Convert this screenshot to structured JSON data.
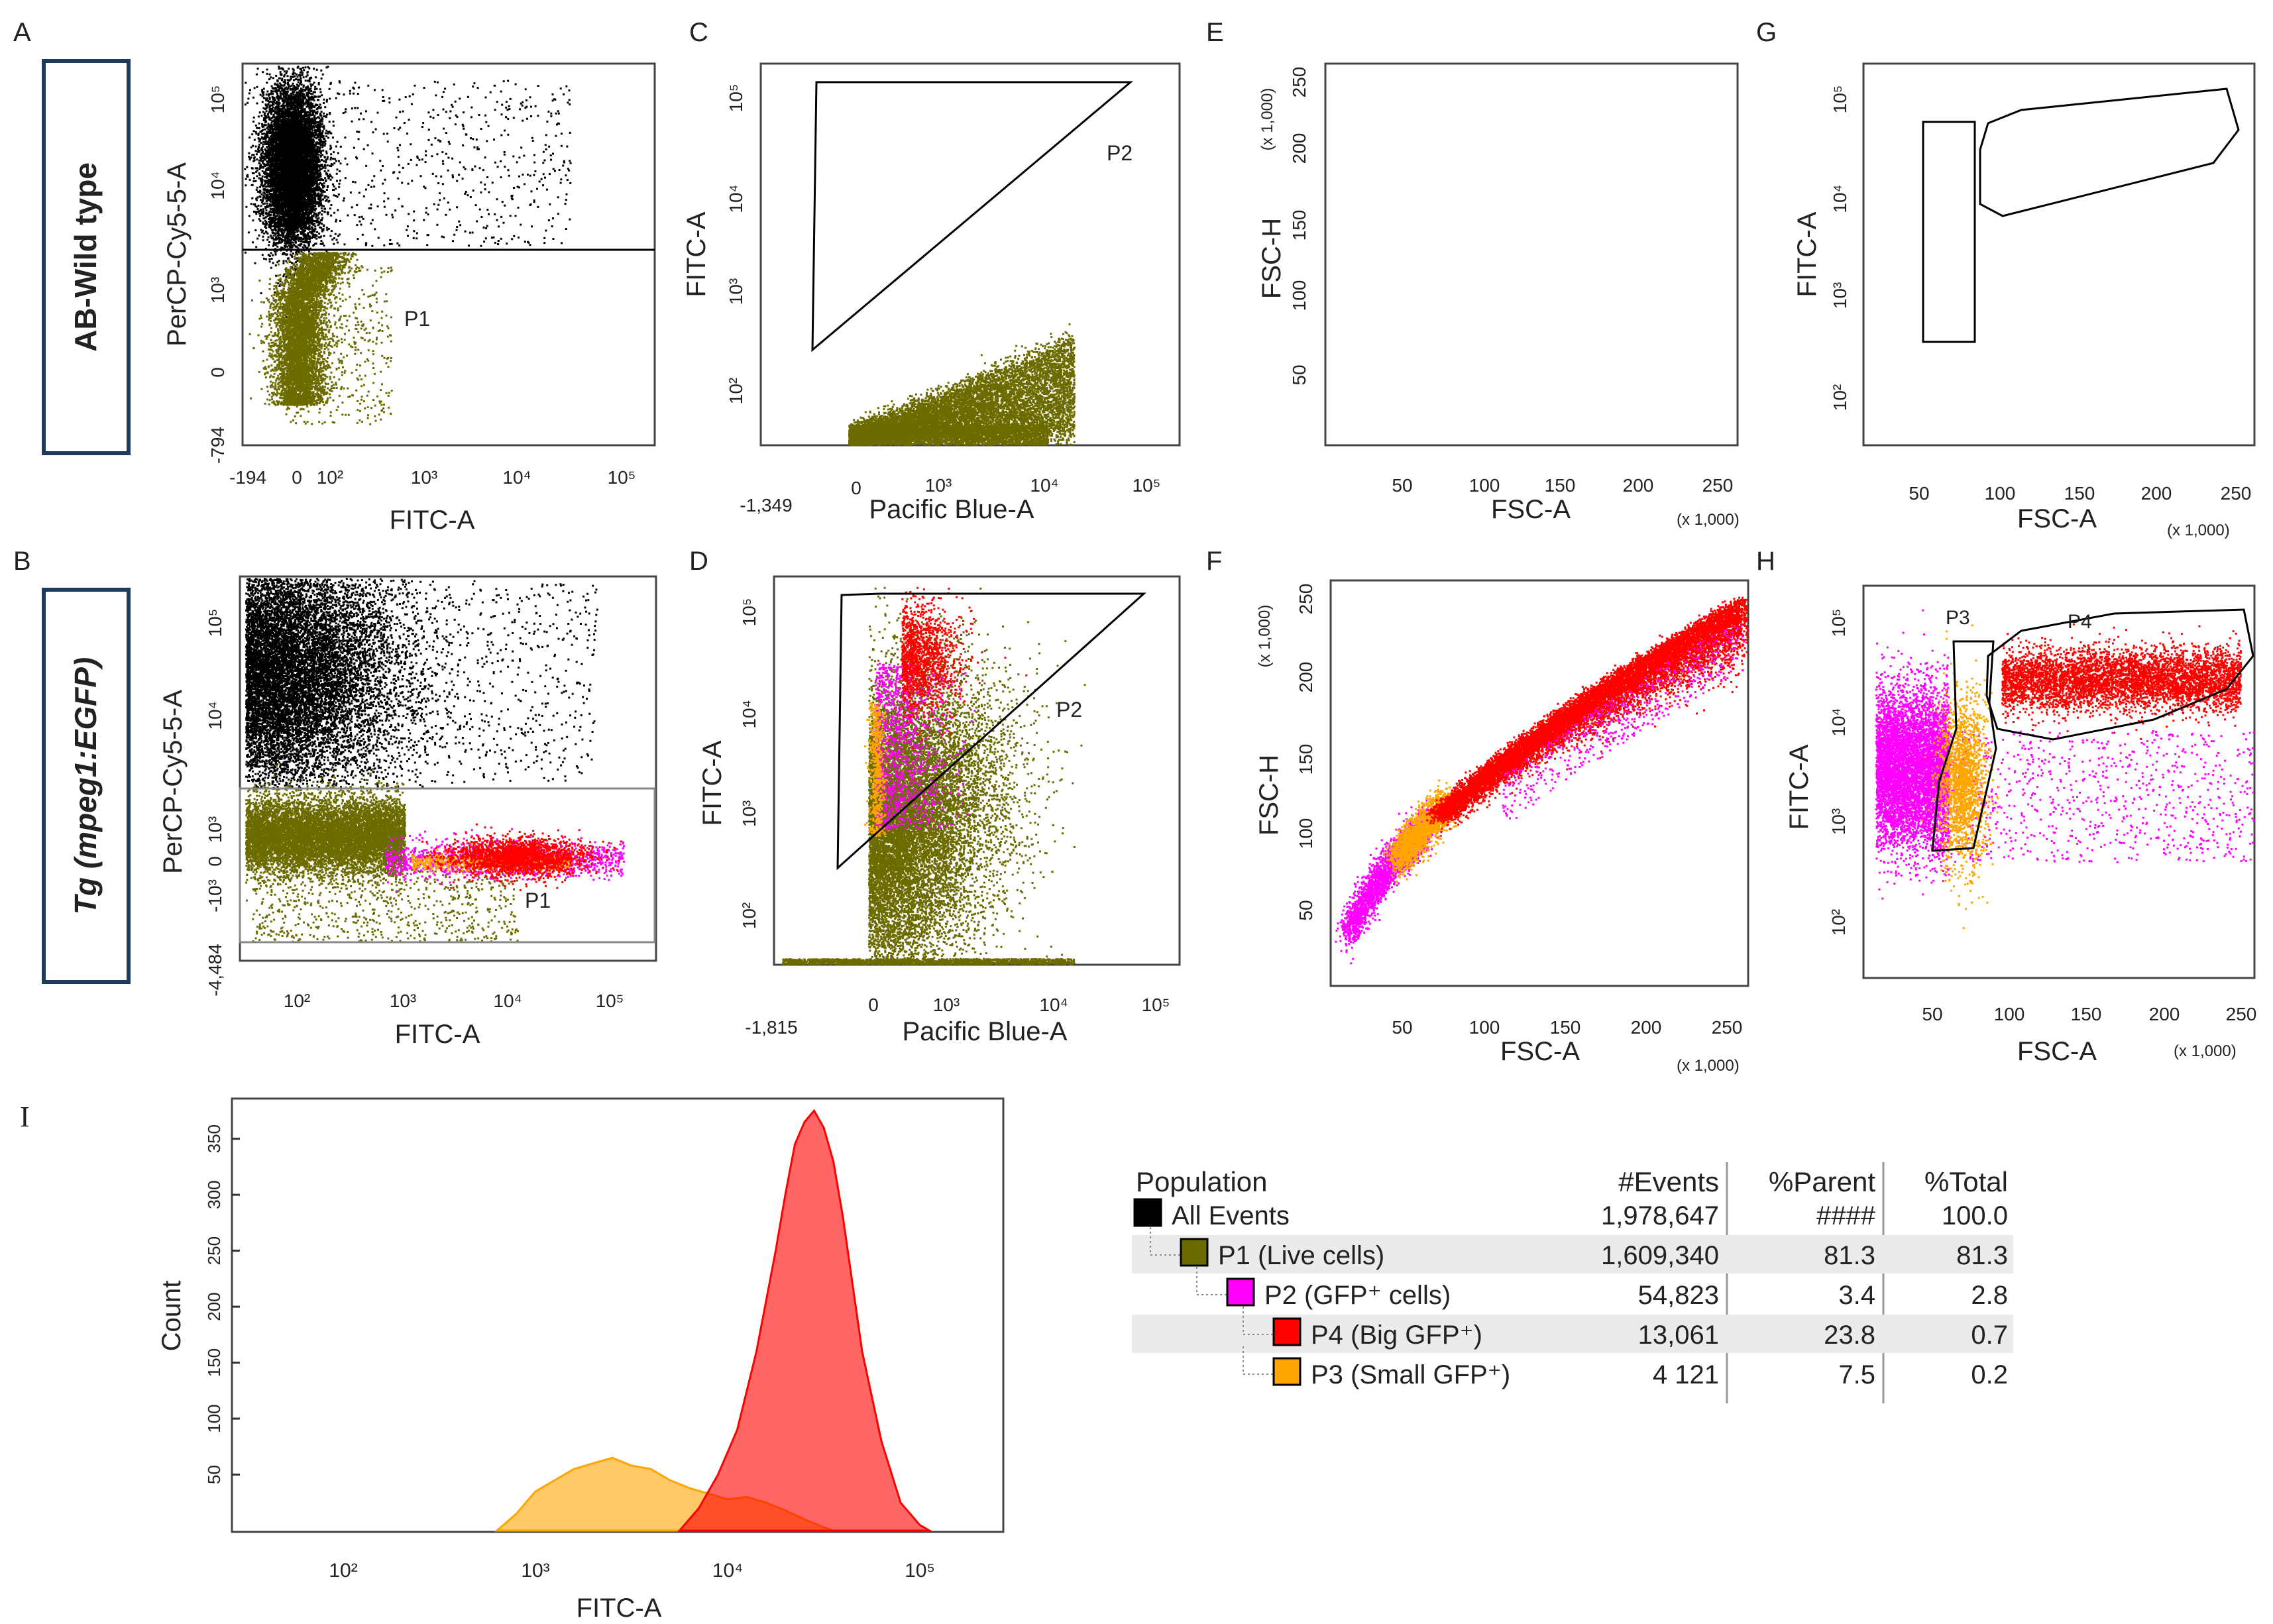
{
  "panel_letters": {
    "A": "A",
    "B": "B",
    "C": "C",
    "D": "D",
    "E": "E",
    "F": "F",
    "G": "G",
    "H": "H",
    "I": "I"
  },
  "row_labels": {
    "top": "AB-Wild type",
    "bottom": "Tg (mpeg1:EGFP)"
  },
  "colors": {
    "all_events": "#000000",
    "p1": "#6b6b00",
    "p2": "#ff00ff",
    "p4": "#ff0000",
    "p3": "#ffa500",
    "frame": "#1f3a5f"
  },
  "chart_data": [
    {
      "id": "A",
      "type": "scatter",
      "xlabel": "FITC-A",
      "ylabel": "PerCP-Cy5-5-A",
      "x_ticks": [
        "-194",
        "0",
        "10²",
        "10³",
        "10⁴",
        "10⁵"
      ],
      "y_ticks": [
        "-794",
        "0",
        "10³",
        "10⁴",
        "10⁵"
      ],
      "gates": [
        {
          "name": "P1",
          "shape": "horizontal-line-below"
        }
      ],
      "populations": [
        "all_events",
        "p1"
      ]
    },
    {
      "id": "C",
      "type": "scatter",
      "xlabel": "Pacific Blue-A",
      "ylabel": "FITC-A",
      "x_ticks": [
        "-1,349",
        "0",
        "10³",
        "10⁴",
        "10⁵"
      ],
      "y_ticks": [
        "10²",
        "10³",
        "10⁴",
        "10⁵"
      ],
      "gates": [
        {
          "name": "P2",
          "shape": "triangle"
        }
      ],
      "populations": [
        "p1"
      ]
    },
    {
      "id": "E",
      "type": "scatter",
      "xlabel": "FSC-A",
      "ylabel": "FSC-H",
      "x_ticks": [
        "50",
        "100",
        "150",
        "200",
        "250"
      ],
      "y_ticks": [
        "50",
        "100",
        "150",
        "200",
        "250"
      ],
      "x_scale_note": "(x 1,000)",
      "y_scale_note": "(x 1,000)",
      "gates": [],
      "populations": []
    },
    {
      "id": "G",
      "type": "scatter",
      "xlabel": "FSC-A",
      "ylabel": "FITC-A",
      "x_ticks": [
        "50",
        "100",
        "150",
        "200",
        "250"
      ],
      "y_ticks": [
        "10²",
        "10³",
        "10⁴",
        "10⁵"
      ],
      "x_scale_note": "(x 1,000)",
      "gates": [
        {
          "name": "",
          "shape": "rectangle"
        },
        {
          "name": "",
          "shape": "polygon"
        }
      ],
      "populations": []
    },
    {
      "id": "B",
      "type": "scatter",
      "xlabel": "FITC-A",
      "ylabel": "PerCP-Cy5-5-A",
      "x_ticks": [
        "10²",
        "10³",
        "10⁴",
        "10⁵"
      ],
      "y_ticks": [
        "-4,484",
        "-10³",
        "0",
        "10³",
        "10⁴",
        "10⁵"
      ],
      "gates": [
        {
          "name": "P1",
          "shape": "band"
        }
      ],
      "populations": [
        "all_events",
        "p1",
        "p2",
        "p3",
        "p4"
      ]
    },
    {
      "id": "D",
      "type": "scatter",
      "xlabel": "Pacific Blue-A",
      "ylabel": "FITC-A",
      "x_ticks": [
        "-1,815",
        "0",
        "10³",
        "10⁴",
        "10⁵"
      ],
      "y_ticks": [
        "10²",
        "10³",
        "10⁴",
        "10⁵"
      ],
      "gates": [
        {
          "name": "P2",
          "shape": "triangle"
        }
      ],
      "populations": [
        "p1",
        "p2",
        "p3",
        "p4"
      ]
    },
    {
      "id": "F",
      "type": "scatter",
      "xlabel": "FSC-A",
      "ylabel": "FSC-H",
      "x_ticks": [
        "50",
        "100",
        "150",
        "200",
        "250"
      ],
      "y_ticks": [
        "50",
        "100",
        "150",
        "200",
        "250"
      ],
      "x_scale_note": "(x 1,000)",
      "y_scale_note": "(x 1,000)",
      "gates": [],
      "populations": [
        "p2",
        "p3",
        "p4"
      ]
    },
    {
      "id": "H",
      "type": "scatter",
      "xlabel": "FSC-A",
      "ylabel": "FITC-A",
      "x_ticks": [
        "50",
        "100",
        "150",
        "200",
        "250"
      ],
      "y_ticks": [
        "10²",
        "10³",
        "10⁴",
        "10⁵"
      ],
      "x_scale_note": "(x 1,000)",
      "gates": [
        {
          "name": "P3",
          "shape": "polygon"
        },
        {
          "name": "P4",
          "shape": "polygon"
        }
      ],
      "populations": [
        "p2",
        "p3",
        "p4"
      ]
    },
    {
      "id": "I",
      "type": "area",
      "title": "",
      "xlabel": "FITC-A",
      "ylabel": "Count",
      "x_ticks": [
        "10²",
        "10³",
        "10⁴",
        "10⁵"
      ],
      "y_ticks": [
        "50",
        "100",
        "150",
        "200",
        "250",
        "300",
        "350"
      ],
      "ylim": [
        0,
        380
      ],
      "series": [
        {
          "name": "P3",
          "color_key": "p3",
          "x_log": [
            2.8,
            2.9,
            3.0,
            3.1,
            3.2,
            3.3,
            3.4,
            3.5,
            3.6,
            3.7,
            3.8,
            3.9,
            4.0,
            4.1,
            4.2,
            4.3,
            4.4,
            4.5,
            4.55
          ],
          "counts": [
            0,
            15,
            35,
            45,
            55,
            60,
            65,
            58,
            55,
            45,
            38,
            33,
            28,
            30,
            25,
            18,
            10,
            3,
            0
          ]
        },
        {
          "name": "P4",
          "color_key": "p4",
          "x_log": [
            3.75,
            3.85,
            3.95,
            4.05,
            4.15,
            4.25,
            4.3,
            4.35,
            4.4,
            4.45,
            4.5,
            4.55,
            4.6,
            4.65,
            4.7,
            4.8,
            4.9,
            5.0,
            5.05
          ],
          "counts": [
            0,
            20,
            50,
            90,
            160,
            250,
            300,
            345,
            365,
            375,
            360,
            330,
            280,
            220,
            160,
            80,
            25,
            5,
            0
          ]
        }
      ]
    },
    {
      "id": "table",
      "type": "table",
      "columns": [
        "Population",
        "#Events",
        "%Parent",
        "%Total"
      ],
      "rows": [
        {
          "name": "All Events",
          "events": "1,978,647",
          "parent": "####",
          "total": "100.0",
          "color_key": "all_events",
          "level": 0
        },
        {
          "name": "P1 (Live cells)",
          "events": "1,609,340",
          "parent": "81.3",
          "total": "81.3",
          "color_key": "p1",
          "level": 1
        },
        {
          "name": "P2 (GFP⁺ cells)",
          "events": "54,823",
          "parent": "3.4",
          "total": "2.8",
          "color_key": "p2",
          "level": 2
        },
        {
          "name": "P4 (Big GFP⁺)",
          "events": "13,061",
          "parent": "23.8",
          "total": "0.7",
          "color_key": "p4",
          "level": 3
        },
        {
          "name": "P3 (Small GFP⁺)",
          "events": "4 121",
          "parent": "7.5",
          "total": "0.2",
          "color_key": "p3",
          "level": 3
        }
      ]
    }
  ]
}
